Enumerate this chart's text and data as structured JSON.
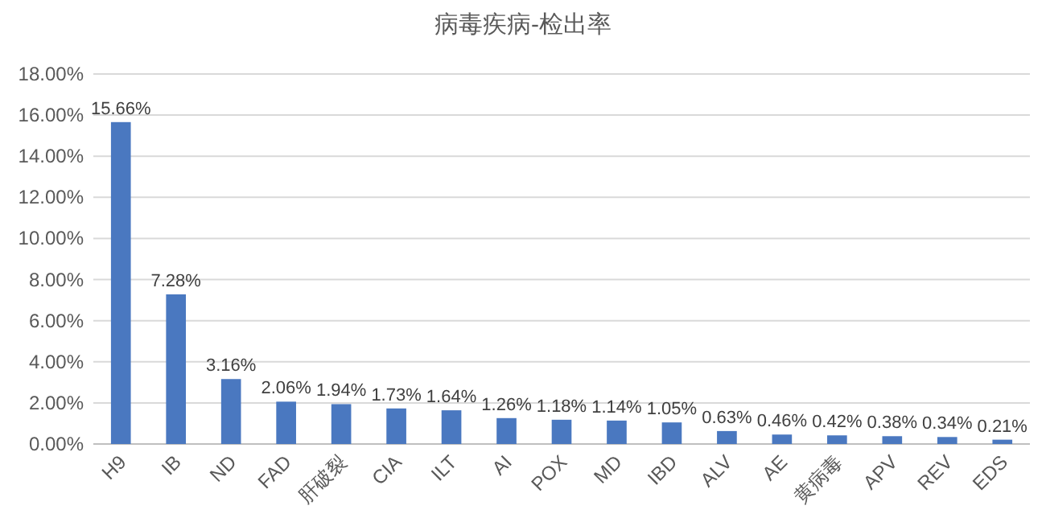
{
  "chart_data": {
    "type": "bar",
    "title": "病毒疾病-检出率",
    "categories": [
      "H9",
      "IB",
      "ND",
      "FAD",
      "肝破裂",
      "CIA",
      "ILT",
      "AI",
      "POX",
      "MD",
      "IBD",
      "ALV",
      "AE",
      "黄病毒",
      "APV",
      "REV",
      "EDS"
    ],
    "values": [
      15.66,
      7.28,
      3.16,
      2.06,
      1.94,
      1.73,
      1.64,
      1.26,
      1.18,
      1.14,
      1.05,
      0.63,
      0.46,
      0.42,
      0.38,
      0.34,
      0.21
    ],
    "value_labels": [
      "15.66%",
      "7.28%",
      "3.16%",
      "2.06%",
      "1.94%",
      "1.73%",
      "1.64%",
      "1.26%",
      "1.18%",
      "1.14%",
      "1.05%",
      "0.63%",
      "0.46%",
      "0.42%",
      "0.38%",
      "0.34%",
      "0.21%"
    ],
    "color": "#4a78c0",
    "ylim": [
      0,
      18
    ],
    "yticks": [
      {
        "value": 0,
        "label": "0.00%"
      },
      {
        "value": 2,
        "label": "2.00%"
      },
      {
        "value": 4,
        "label": "4.00%"
      },
      {
        "value": 6,
        "label": "6.00%"
      },
      {
        "value": 8,
        "label": "8.00%"
      },
      {
        "value": 10,
        "label": "10.00%"
      },
      {
        "value": 12,
        "label": "12.00%"
      },
      {
        "value": 14,
        "label": "14.00%"
      },
      {
        "value": 16,
        "label": "16.00%"
      },
      {
        "value": 18,
        "label": "18.00%"
      }
    ],
    "grid": "y"
  }
}
